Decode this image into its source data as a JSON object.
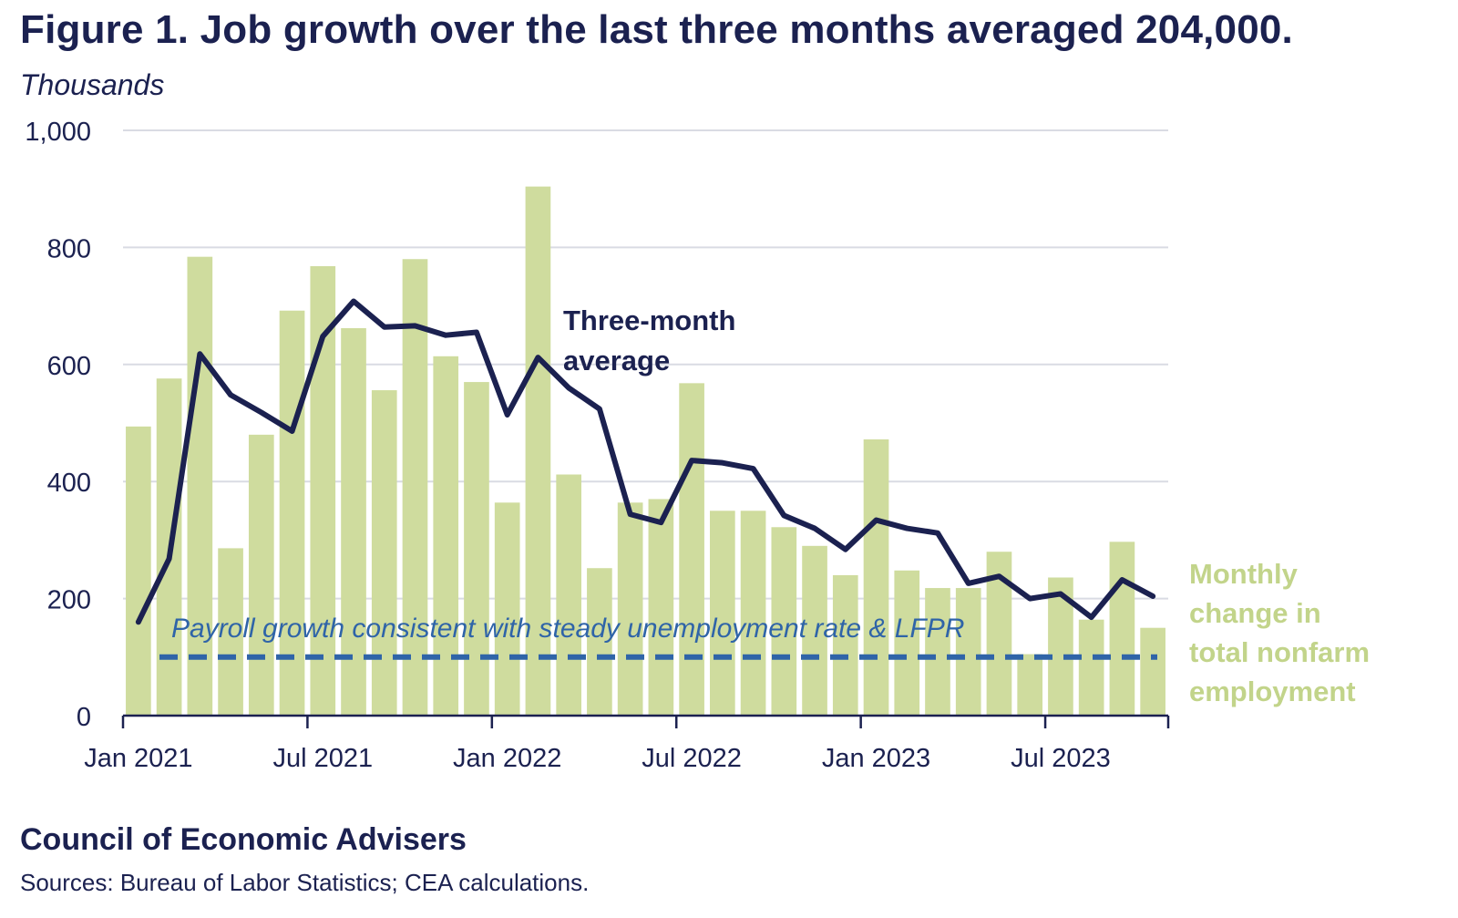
{
  "title": "Figure 1. Job growth over the last three months averaged 204,000.",
  "source": {
    "org": "Council of Economic Advisers",
    "note": "Sources: Bureau of Labor Statistics; CEA calculations."
  },
  "colors": {
    "bars": "#cfdc9e",
    "line": "#1b2150",
    "reference": "#2f64a8",
    "bar_label": "#c2d48a",
    "grid": "#d9dbe3",
    "text": "#1b2150"
  },
  "chart_data": {
    "type": "bar",
    "ylabel": "Thousands",
    "ylim": [
      0,
      1000
    ],
    "yticks": [
      {
        "value": 0,
        "label": "0"
      },
      {
        "value": 200,
        "label": "200"
      },
      {
        "value": 400,
        "label": "400"
      },
      {
        "value": 600,
        "label": "600"
      },
      {
        "value": 800,
        "label": "800"
      },
      {
        "value": 1000,
        "label": "1,000"
      }
    ],
    "grid": true,
    "xticks": [
      {
        "index": 0,
        "label": "Jan 2021"
      },
      {
        "index": 6,
        "label": "Jul 2021"
      },
      {
        "index": 12,
        "label": "Jan 2022"
      },
      {
        "index": 18,
        "label": "Jul 2022"
      },
      {
        "index": 24,
        "label": "Jan 2023"
      },
      {
        "index": 30,
        "label": "Jul 2023"
      }
    ],
    "categories": [
      "Jan 2021",
      "Feb 2021",
      "Mar 2021",
      "Apr 2021",
      "May 2021",
      "Jun 2021",
      "Jul 2021",
      "Aug 2021",
      "Sep 2021",
      "Oct 2021",
      "Nov 2021",
      "Dec 2021",
      "Jan 2022",
      "Feb 2022",
      "Mar 2022",
      "Apr 2022",
      "May 2022",
      "Jun 2022",
      "Jul 2022",
      "Aug 2022",
      "Sep 2022",
      "Oct 2022",
      "Nov 2022",
      "Dec 2022",
      "Jan 2023",
      "Feb 2023",
      "Mar 2023",
      "Apr 2023",
      "May 2023",
      "Jun 2023",
      "Jul 2023",
      "Aug 2023",
      "Sep 2023",
      "Oct 2023"
    ],
    "series": [
      {
        "name": "Monthly change in total nonfarm employment",
        "type": "bar",
        "values": [
          494,
          576,
          784,
          286,
          480,
          692,
          768,
          662,
          556,
          780,
          614,
          570,
          364,
          904,
          412,
          252,
          364,
          370,
          568,
          350,
          350,
          322,
          290,
          240,
          472,
          248,
          218,
          218,
          280,
          105,
          236,
          164,
          297,
          150
        ]
      },
      {
        "name": "Three-month average",
        "type": "line",
        "values": [
          160,
          268,
          618,
          548,
          518,
          486,
          648,
          708,
          664,
          666,
          650,
          655,
          514,
          612,
          560,
          524,
          344,
          330,
          436,
          432,
          422,
          342,
          320,
          284,
          334,
          320,
          312,
          226,
          238,
          200,
          208,
          168,
          232,
          204
        ]
      }
    ],
    "reference_line": {
      "label": "Payroll growth consistent with steady unemployment rate & LFPR",
      "value": 100,
      "style": "dashed"
    },
    "annotations": {
      "line_label": [
        "Three-month",
        "average"
      ],
      "bar_label": [
        "Monthly",
        "change in",
        "total nonfarm",
        "employment"
      ]
    }
  }
}
